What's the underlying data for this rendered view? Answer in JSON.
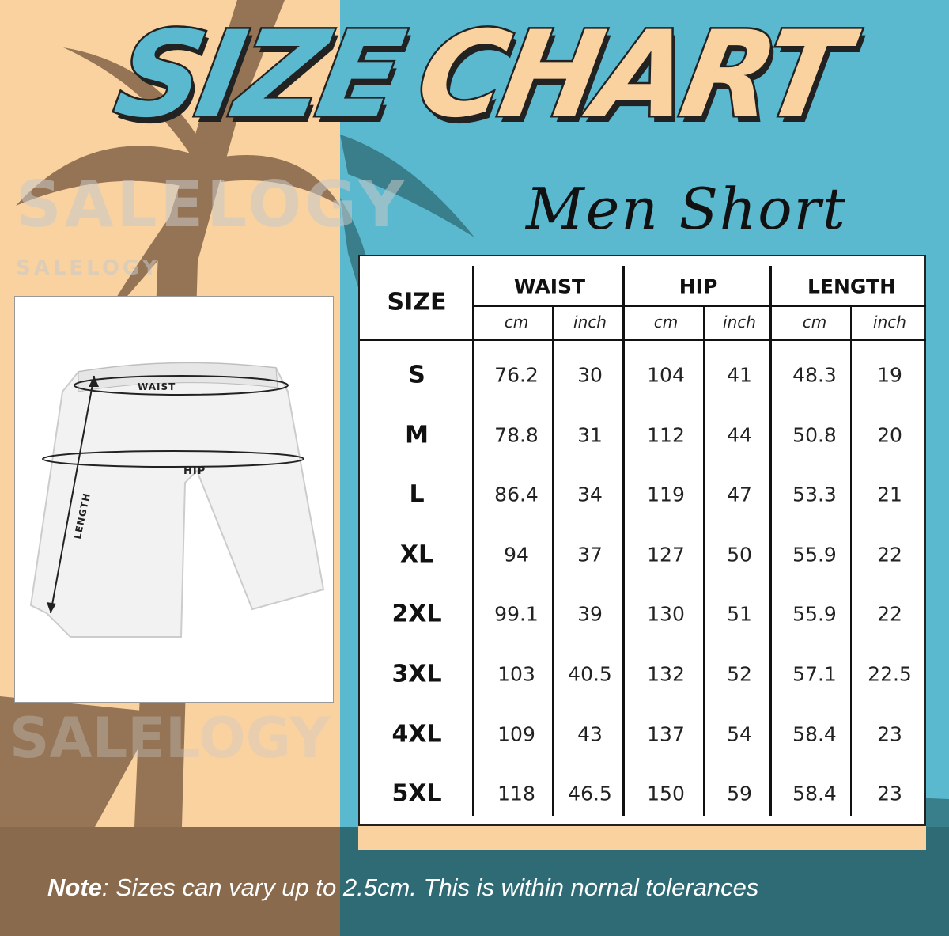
{
  "title": {
    "word1": "SIZE",
    "word2": "CHART",
    "subtitle": "Men Short"
  },
  "watermark": "SALELOGY",
  "diagram": {
    "waist_label": "WAIST",
    "hip_label": "HIP",
    "length_label": "LENGTH"
  },
  "table": {
    "size_header": "SIZE",
    "groups": [
      "WAIST",
      "HIP",
      "LENGTH"
    ],
    "units": [
      "cm",
      "inch",
      "cm",
      "inch",
      "cm",
      "inch"
    ],
    "rows": [
      {
        "size": "S",
        "values": [
          "76.2",
          "30",
          "104",
          "41",
          "48.3",
          "19"
        ]
      },
      {
        "size": "M",
        "values": [
          "78.8",
          "31",
          "112",
          "44",
          "50.8",
          "20"
        ]
      },
      {
        "size": "L",
        "values": [
          "86.4",
          "34",
          "119",
          "47",
          "53.3",
          "21"
        ]
      },
      {
        "size": "XL",
        "values": [
          "94",
          "37",
          "127",
          "50",
          "55.9",
          "22"
        ]
      },
      {
        "size": "2XL",
        "values": [
          "99.1",
          "39",
          "130",
          "51",
          "55.9",
          "22"
        ]
      },
      {
        "size": "3XL",
        "values": [
          "103",
          "40.5",
          "132",
          "52",
          "57.1",
          "22.5"
        ]
      },
      {
        "size": "4XL",
        "values": [
          "109",
          "43",
          "137",
          "54",
          "58.4",
          "23"
        ]
      },
      {
        "size": "5XL",
        "values": [
          "118",
          "46.5",
          "150",
          "59",
          "58.4",
          "23"
        ]
      }
    ]
  },
  "note": {
    "label": "Note",
    "text": ": Sizes can vary up to 2.5cm. This is within nornal tolerances"
  },
  "colors": {
    "peach": "#f9d2a0",
    "teal": "#5ab9cf",
    "brown": "#8a6a4c",
    "dark_teal": "#2e6b74"
  }
}
